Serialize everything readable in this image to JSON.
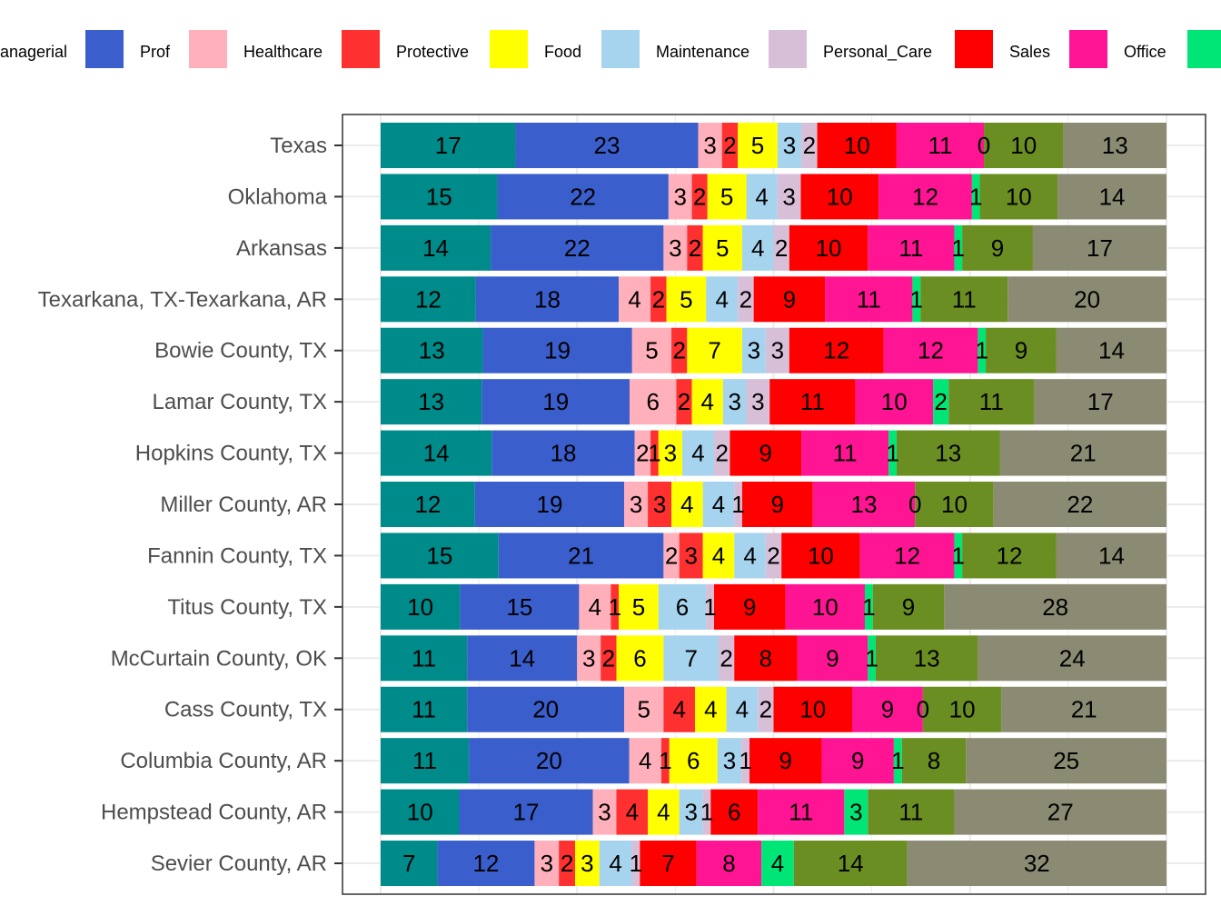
{
  "chart_data": {
    "type": "bar",
    "orientation": "horizontal",
    "stacked": true,
    "percent_scale": true,
    "legend_position": "top",
    "grid": true,
    "xlabel": "",
    "ylabel": "",
    "categories": [
      "Texas",
      "Oklahoma",
      "Arkansas",
      "Texarkana, TX-Texarkana, AR",
      "Bowie County, TX",
      "Lamar County, TX",
      "Hopkins County, TX",
      "Miller County, AR",
      "Fannin County, TX",
      "Titus County, TX",
      "McCurtain County, OK",
      "Cass County, TX",
      "Columbia County, AR",
      "Hempstead County, AR",
      "Sevier County, AR"
    ],
    "series": [
      {
        "name": "Managerial",
        "legend_text": "anagerial",
        "color": "#008B8B",
        "values": [
          17,
          15,
          14,
          12,
          13,
          13,
          14,
          12,
          15,
          10,
          11,
          11,
          11,
          10,
          7
        ]
      },
      {
        "name": "Prof",
        "color": "#3A5FCD",
        "values": [
          23,
          22,
          22,
          18,
          19,
          19,
          18,
          19,
          21,
          15,
          14,
          20,
          20,
          17,
          12
        ]
      },
      {
        "name": "Healthcare",
        "color": "#FFB0BB",
        "values": [
          3,
          3,
          3,
          4,
          5,
          6,
          2,
          3,
          2,
          4,
          3,
          5,
          4,
          3,
          3
        ]
      },
      {
        "name": "Protective",
        "color": "#FF3030",
        "values": [
          2,
          2,
          2,
          2,
          2,
          2,
          1,
          3,
          3,
          1,
          2,
          4,
          1,
          4,
          2
        ]
      },
      {
        "name": "Food",
        "color": "#FFFF00",
        "values": [
          5,
          5,
          5,
          5,
          7,
          4,
          3,
          4,
          4,
          5,
          6,
          4,
          6,
          4,
          3
        ]
      },
      {
        "name": "Maintenance",
        "color": "#A6D3ED",
        "values": [
          3,
          4,
          4,
          4,
          3,
          3,
          4,
          4,
          4,
          6,
          7,
          4,
          3,
          3,
          4
        ]
      },
      {
        "name": "Personal_Care",
        "color": "#D8BFD8",
        "values": [
          2,
          3,
          2,
          2,
          3,
          3,
          2,
          1,
          2,
          1,
          2,
          2,
          1,
          1,
          1
        ]
      },
      {
        "name": "Sales",
        "color": "#FF0000",
        "values": [
          10,
          10,
          10,
          9,
          12,
          11,
          9,
          9,
          10,
          9,
          8,
          10,
          9,
          6,
          7
        ]
      },
      {
        "name": "Office",
        "color": "#FF1493",
        "values": [
          11,
          12,
          11,
          11,
          12,
          10,
          11,
          13,
          12,
          10,
          9,
          9,
          9,
          11,
          8
        ]
      },
      {
        "name": "",
        "color": "#00E676",
        "values": [
          0,
          1,
          1,
          1,
          1,
          2,
          1,
          0,
          1,
          1,
          1,
          0,
          1,
          3,
          4
        ]
      },
      {
        "name": "",
        "color": "#6B8E23",
        "values": [
          10,
          10,
          9,
          11,
          9,
          11,
          13,
          10,
          12,
          9,
          13,
          10,
          8,
          11,
          14
        ]
      },
      {
        "name": "",
        "color": "#8B8B73",
        "values": [
          13,
          14,
          17,
          20,
          14,
          17,
          21,
          22,
          14,
          28,
          24,
          21,
          25,
          27,
          32
        ]
      }
    ]
  }
}
